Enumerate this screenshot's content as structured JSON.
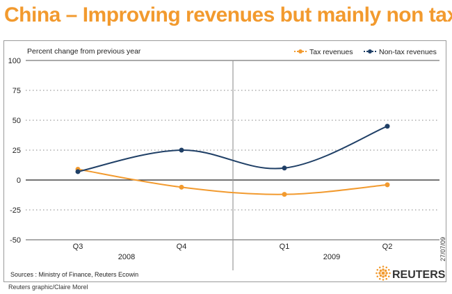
{
  "title": "China – Improving revenues but mainly non tax",
  "chart_data": {
    "type": "line",
    "title": "China – Improving revenues but mainly non tax",
    "ylabel": "Percent change from previous year",
    "xlabel": "",
    "ylim": [
      -50,
      100
    ],
    "yticks": [
      100,
      75,
      50,
      25,
      0,
      -25,
      -50
    ],
    "yticklabels": [
      "100",
      "75",
      "50",
      "25",
      "0",
      "-25",
      "-50"
    ],
    "categories": [
      "Q3",
      "Q4",
      "Q1",
      "Q2"
    ],
    "year_groups": [
      {
        "label": "2008",
        "span": [
          "Q3",
          "Q4"
        ]
      },
      {
        "label": "2009",
        "span": [
          "Q1",
          "Q2"
        ]
      }
    ],
    "grid": "dotted",
    "legend": "top-right",
    "series": [
      {
        "name": "Tax revenues",
        "color": "#f29a2e",
        "values": [
          9,
          -6,
          -12,
          -4
        ]
      },
      {
        "name": "Non-tax revenues",
        "color": "#1f3f66",
        "values": [
          7,
          25,
          10,
          45
        ]
      }
    ]
  },
  "source": "Sources : Ministry of Finance, Reuters Ecowin",
  "credit": "Reuters graphic/Claire Morel",
  "date": "27/07/09",
  "brand": "REUTERS",
  "colors": {
    "title": "#f29a2e",
    "tax": "#f29a2e",
    "nontax": "#1f3f66"
  }
}
